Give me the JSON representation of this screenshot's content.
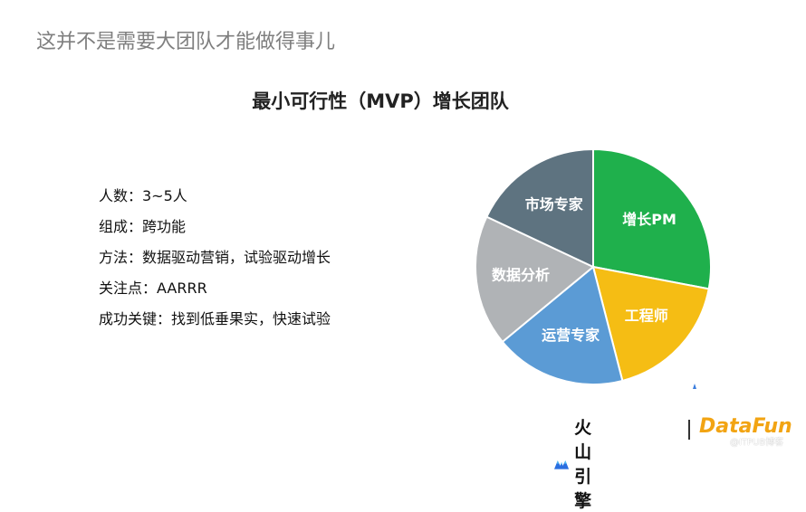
{
  "slide": {
    "title": "这并不是需要大团队才能做得事儿"
  },
  "facts": [
    "人数：3~5人",
    "组成：跨功能",
    "方法：数据驱动营销，试验驱动增长",
    "关注点：AARRR",
    "成功关键：找到低垂果实，快速试验"
  ],
  "chart_data": {
    "type": "pie",
    "title": "最小可行性（MVP）增长团队",
    "slices": [
      {
        "label": "增长PM",
        "value": 28,
        "color": "#1fb04c"
      },
      {
        "label": "工程师",
        "value": 18,
        "color": "#f5bd14"
      },
      {
        "label": "运营专家",
        "value": 18,
        "color": "#5b9bd5"
      },
      {
        "label": "数据分析",
        "value": 18,
        "color": "#b0b3b6"
      },
      {
        "label": "市场专家",
        "value": 18,
        "color": "#5e7380"
      }
    ],
    "start_angle_deg": 0,
    "direction": "clockwise",
    "legend": "none"
  },
  "footer": {
    "logo1_text": "火山引擎",
    "logo2_text": "DataFun",
    "watermark": "@ITPUB博客"
  }
}
